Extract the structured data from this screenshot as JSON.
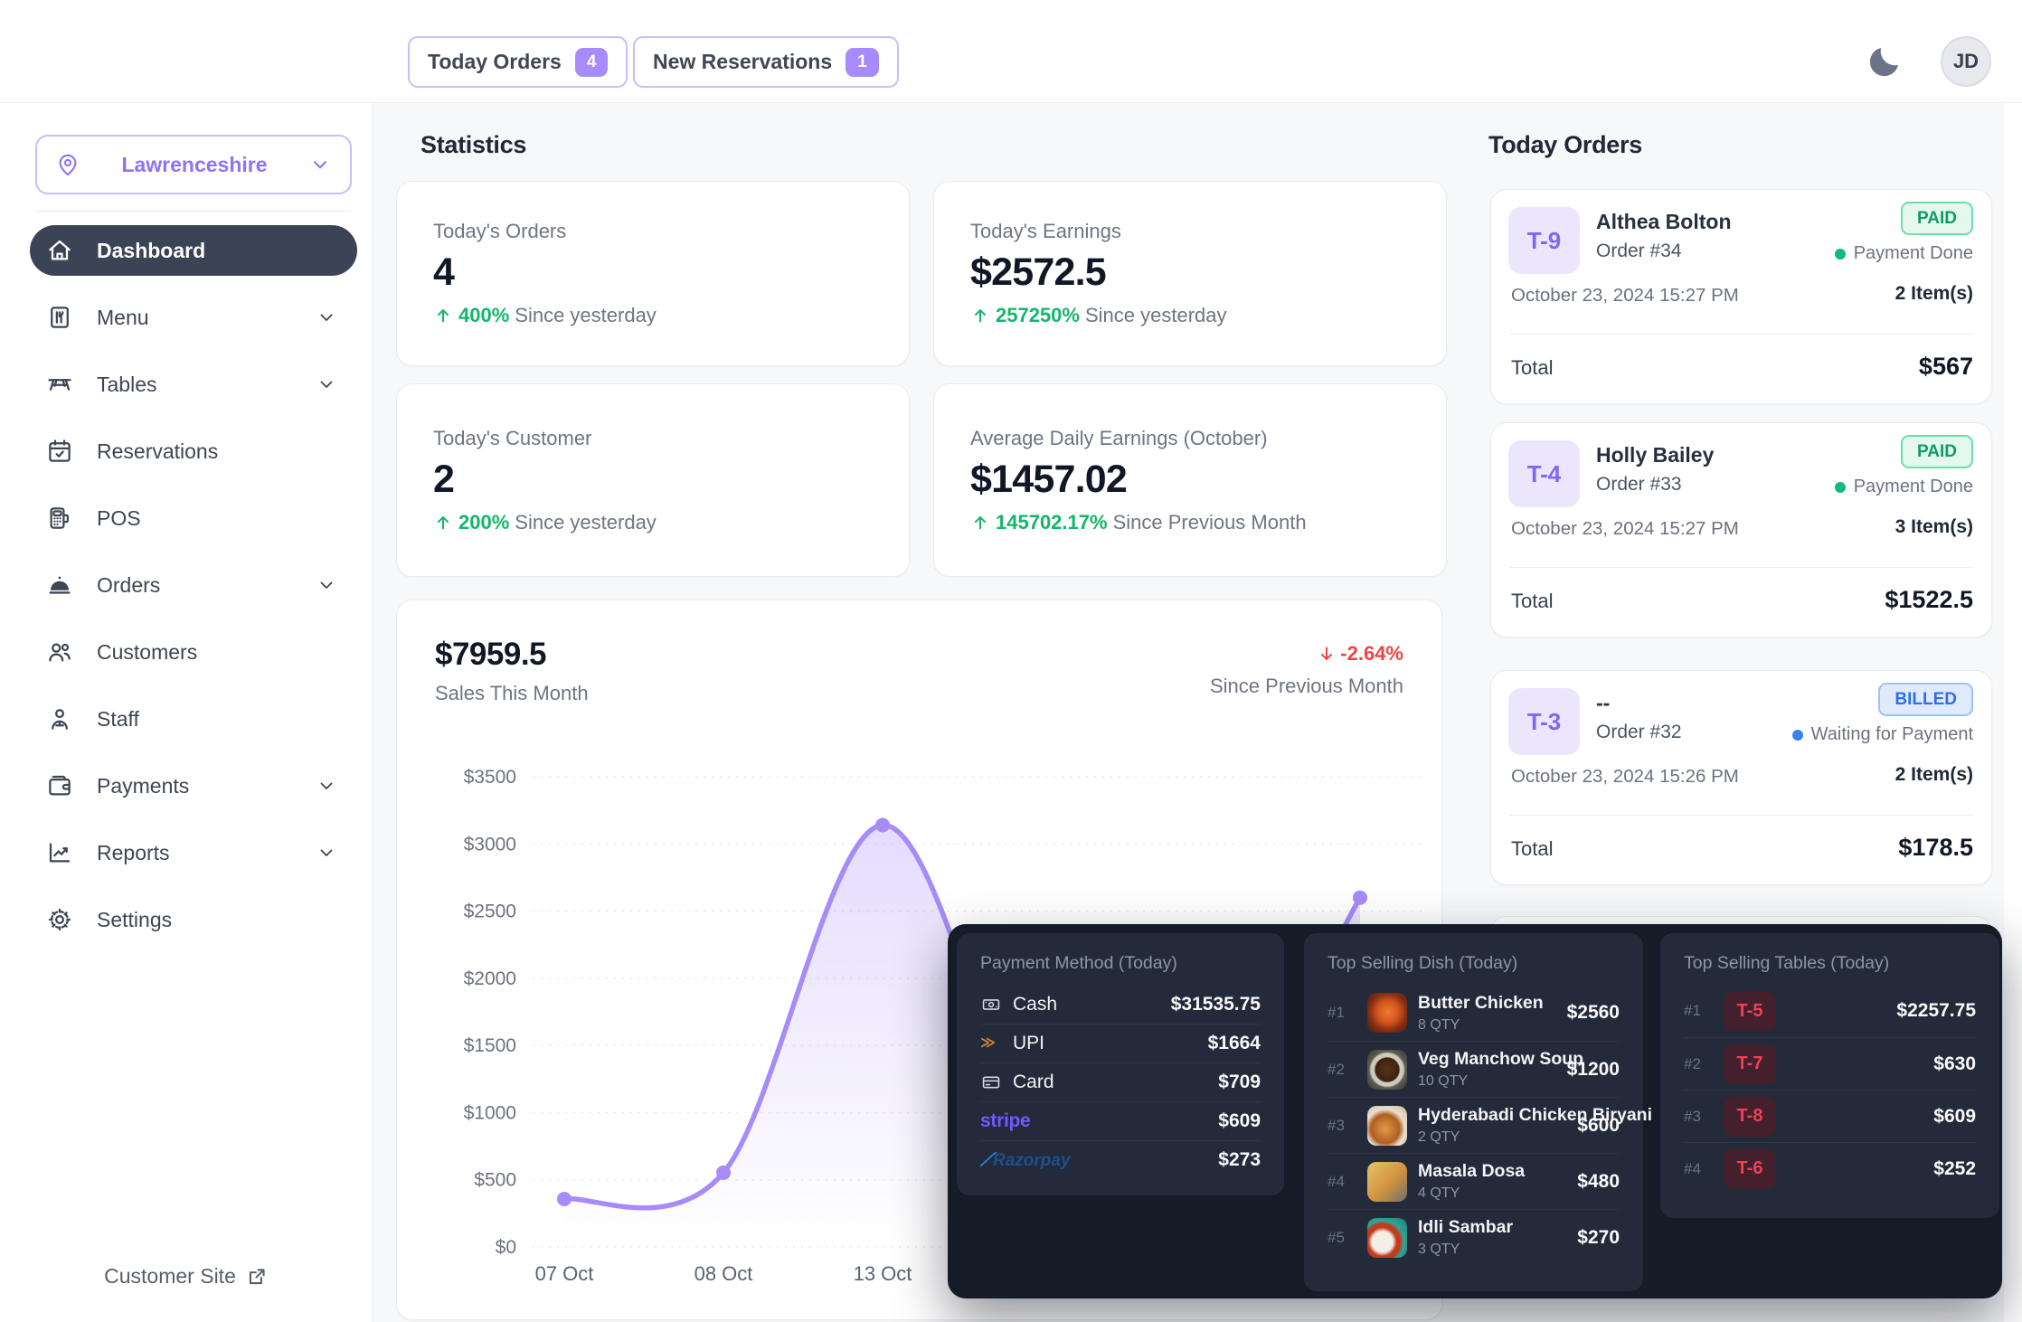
{
  "colors": {
    "accent_purple": "#8b5cf6",
    "badge_purple": "#a78bfa",
    "chart_line": "#a78bfa",
    "green": "#12b76a",
    "red": "#ef4444",
    "blue": "#3b82f6",
    "dark_panel_bg": "#161b28",
    "dark_panel_card": "#232a39",
    "active_nav_bg": "#3a4454"
  },
  "topbar": {
    "today_orders": {
      "label": "Today Orders",
      "count": "4"
    },
    "new_reservations": {
      "label": "New Reservations",
      "count": "1"
    },
    "avatar": "JD"
  },
  "sidebar": {
    "location": "Lawrenceshire",
    "items": [
      {
        "label": "Dashboard",
        "icon": "home",
        "active": true,
        "chevron": false
      },
      {
        "label": "Menu",
        "icon": "menu-board",
        "active": false,
        "chevron": true
      },
      {
        "label": "Tables",
        "icon": "table",
        "active": false,
        "chevron": true
      },
      {
        "label": "Reservations",
        "icon": "calendar-check",
        "active": false,
        "chevron": false
      },
      {
        "label": "POS",
        "icon": "pos-terminal",
        "active": false,
        "chevron": false
      },
      {
        "label": "Orders",
        "icon": "cloche",
        "active": false,
        "chevron": true
      },
      {
        "label": "Customers",
        "icon": "users",
        "active": false,
        "chevron": false
      },
      {
        "label": "Staff",
        "icon": "staff",
        "active": false,
        "chevron": false
      },
      {
        "label": "Payments",
        "icon": "wallet",
        "active": false,
        "chevron": true
      },
      {
        "label": "Reports",
        "icon": "chart-line",
        "active": false,
        "chevron": true
      },
      {
        "label": "Settings",
        "icon": "gear",
        "active": false,
        "chevron": false
      }
    ],
    "footer_link": "Customer Site"
  },
  "statistics": {
    "heading": "Statistics",
    "cards": [
      {
        "label": "Today's Orders",
        "value": "4",
        "delta": "400%",
        "direction": "up",
        "period": "Since yesterday"
      },
      {
        "label": "Today's Earnings",
        "value": "$2572.5",
        "delta": "257250%",
        "direction": "up",
        "period": "Since yesterday"
      },
      {
        "label": "Today's Customer",
        "value": "2",
        "delta": "200%",
        "direction": "up",
        "period": "Since yesterday"
      },
      {
        "label": "Average Daily Earnings (October)",
        "value": "$1457.02",
        "delta": "145702.17%",
        "direction": "up",
        "period": "Since Previous Month"
      }
    ]
  },
  "sales_chart_header": {
    "total": "$7959.5",
    "label": "Sales This Month",
    "delta": "-2.64%",
    "period": "Since Previous Month"
  },
  "chart_data": {
    "type": "area",
    "title": "Sales This Month",
    "total_value": 7959.5,
    "x_labels": [
      {
        "text": "07 Oct",
        "point": 0
      },
      {
        "text": "08 Oct",
        "point": 1
      },
      {
        "text": "13 Oct",
        "point": 2
      }
    ],
    "points": [
      357,
      552.5,
      3140,
      700,
      610,
      2600
    ],
    "ylim": [
      0,
      3500
    ],
    "yticks": [
      0,
      500,
      1000,
      1500,
      2000,
      2500,
      3000,
      3500
    ],
    "ytick_prefix": "$",
    "grid": true,
    "legend_position": "none",
    "line_color": "#a78bfa",
    "fill_top": "rgba(167,139,250,0.30)",
    "fill_bottom": "rgba(167,139,250,0)"
  },
  "today_orders": {
    "heading": "Today Orders",
    "orders": [
      {
        "table": "T-9",
        "name": "Althea Bolton",
        "order_no": "Order #34",
        "status": "PAID",
        "status_type": "paid",
        "payment_state": "Payment Done",
        "date": "October 23, 2024 15:27 PM",
        "items": "2 Item(s)",
        "total_label": "Total",
        "total": "$567"
      },
      {
        "table": "T-4",
        "name": "Holly Bailey",
        "order_no": "Order #33",
        "status": "PAID",
        "status_type": "paid",
        "payment_state": "Payment Done",
        "date": "October 23, 2024 15:27 PM",
        "items": "3 Item(s)",
        "total_label": "Total",
        "total": "$1522.5"
      },
      {
        "table": "T-3",
        "name": "--",
        "order_no": "Order #32",
        "status": "BILLED",
        "status_type": "billed",
        "payment_state": "Waiting for Payment",
        "date": "October 23, 2024 15:26 PM",
        "items": "2 Item(s)",
        "total_label": "Total",
        "total": "$178.5"
      }
    ]
  },
  "overlays": {
    "payment_method": {
      "title": "Payment Method (Today)",
      "rows": [
        {
          "icon": "cash-icon",
          "name": "Cash",
          "amount": "$31535.75"
        },
        {
          "icon": "upi-logo",
          "name": "UPI",
          "amount": "$1664"
        },
        {
          "icon": "card-icon",
          "name": "Card",
          "amount": "$709"
        },
        {
          "icon": "stripe-logo",
          "name": "stripe",
          "brand": "stripe",
          "amount": "$609"
        },
        {
          "icon": "razorpay-logo",
          "name": "Razorpay",
          "brand": "razorpay",
          "amount": "$273"
        }
      ]
    },
    "top_dishes": {
      "title": "Top Selling Dish (Today)",
      "rows": [
        {
          "rank": "#1",
          "name": "Butter Chicken",
          "qty": "8 QTY",
          "amount": "$2560",
          "photo": "butter-chicken"
        },
        {
          "rank": "#2",
          "name": "Veg Manchow Soup",
          "qty": "10 QTY",
          "amount": "$1200",
          "photo": "manchow-soup"
        },
        {
          "rank": "#3",
          "name": "Hyderabadi Chicken Biryani",
          "qty": "2 QTY",
          "amount": "$600",
          "photo": "biryani"
        },
        {
          "rank": "#4",
          "name": "Masala Dosa",
          "qty": "4 QTY",
          "amount": "$480",
          "photo": "masala-dosa"
        },
        {
          "rank": "#5",
          "name": "Idli Sambar",
          "qty": "3 QTY",
          "amount": "$270",
          "photo": "idli-sambar"
        }
      ]
    },
    "top_tables": {
      "title": "Top Selling Tables (Today)",
      "rows": [
        {
          "rank": "#1",
          "table": "T-5",
          "amount": "$2257.75"
        },
        {
          "rank": "#2",
          "table": "T-7",
          "amount": "$630"
        },
        {
          "rank": "#3",
          "table": "T-8",
          "amount": "$609"
        },
        {
          "rank": "#4",
          "table": "T-6",
          "amount": "$252"
        }
      ]
    }
  }
}
